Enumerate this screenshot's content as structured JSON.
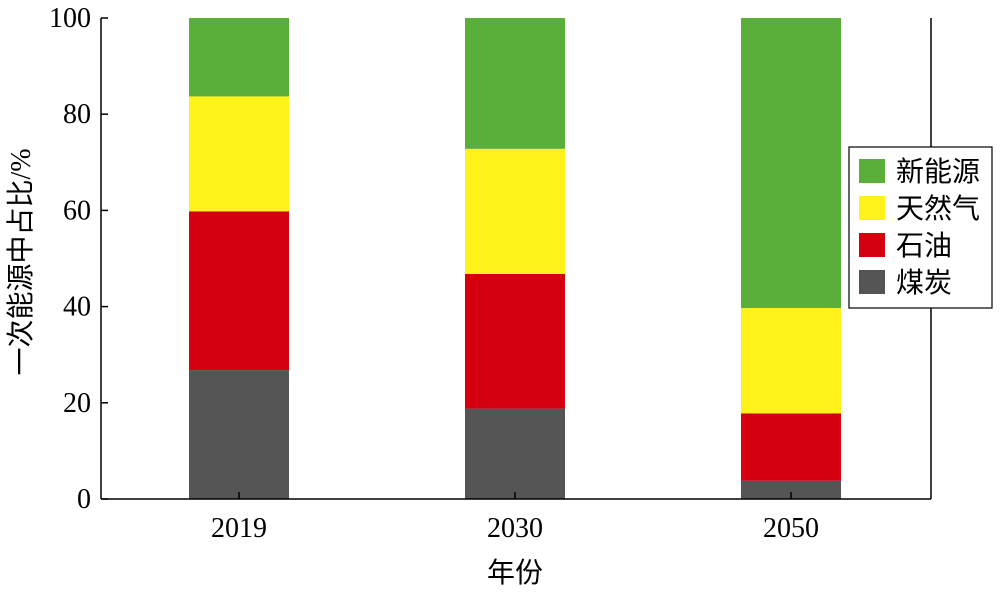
{
  "chart_data": {
    "type": "bar",
    "stacked": true,
    "categories": [
      "2019",
      "2030",
      "2050"
    ],
    "series": [
      {
        "name": "煤炭",
        "color": "#555555",
        "values": [
          26.8,
          18.8,
          3.8
        ]
      },
      {
        "name": "石油",
        "color": "#d40010",
        "values": [
          33.0,
          28.0,
          14.0
        ]
      },
      {
        "name": "天然气",
        "color": "#fff21a",
        "values": [
          23.9,
          26.0,
          21.9
        ]
      },
      {
        "name": "新能源",
        "color": "#5aae3a",
        "values": [
          16.3,
          27.2,
          60.3
        ]
      }
    ],
    "legend_order": [
      "新能源",
      "天然气",
      "石油",
      "煤炭"
    ],
    "legend_position": "right",
    "xlabel": "年份",
    "ylabel": "一次能源中占比/%",
    "ylim": [
      0,
      100
    ],
    "yticks": [
      0,
      20,
      40,
      60,
      80,
      100
    ],
    "grid": false
  }
}
